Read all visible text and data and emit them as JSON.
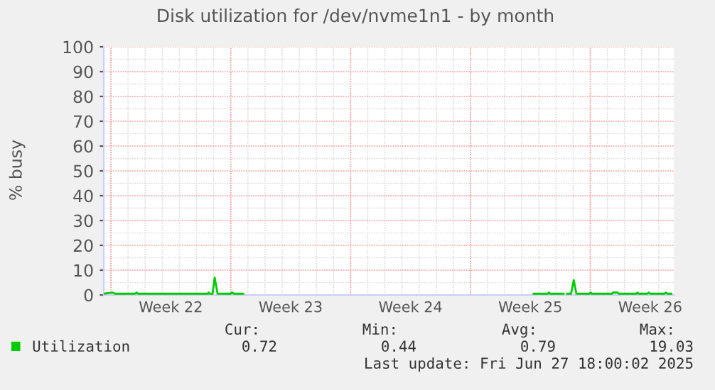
{
  "chart_data": {
    "type": "line",
    "title": "Disk utilization for /dev/nvme1n1 - by month",
    "ylabel": "% busy",
    "xlim": [
      "2025-05-25T14:00",
      "2025-06-27T21:00"
    ],
    "ylim": [
      0,
      100
    ],
    "xticks": [
      {
        "value": "2025-05-26",
        "label": null
      },
      {
        "value": "2025-05-29T12:00",
        "label": "Week 22"
      },
      {
        "value": "2025-06-02",
        "label": null
      },
      {
        "value": "2025-06-05T12:00",
        "label": "Week 23"
      },
      {
        "value": "2025-06-09",
        "label": null
      },
      {
        "value": "2025-06-12T12:00",
        "label": "Week 24"
      },
      {
        "value": "2025-06-16",
        "label": null
      },
      {
        "value": "2025-06-19T12:00",
        "label": "Week 25"
      },
      {
        "value": "2025-06-23",
        "label": null
      },
      {
        "value": "2025-06-26T12:00",
        "label": "Week 26"
      }
    ],
    "yticks": [
      0,
      10,
      20,
      30,
      40,
      50,
      60,
      70,
      80,
      90,
      100
    ],
    "grid": true,
    "legend": "bottom left",
    "series": [
      {
        "name": "Utilization",
        "color": "#00cc00",
        "x": [
          "2025-05-25T14:00",
          "2025-05-26T02:00",
          "2025-05-26T06:00",
          "2025-05-27T10:00",
          "2025-05-27T12:00",
          "2025-05-27T14:00",
          "2025-05-31T16:00",
          "2025-05-31T17:00",
          "2025-05-31T18:30",
          "2025-05-31T22:30",
          "2025-06-01T01:30",
          "2025-06-01T05:30",
          "2025-06-01T23:30",
          "2025-06-02T02:00",
          "2025-06-02T04:30",
          "2025-06-02T17:30",
          "2025-06-02T19:00",
          "2025-06-19T16:30",
          "2025-06-20T12:30",
          "2025-06-20T14:00",
          "2025-06-20T15:30",
          "2025-06-21T10:30",
          "2025-06-21T13:00",
          "2025-06-21T15:30",
          "2025-06-21T21:00",
          "2025-06-22T00:45",
          "2025-06-22T04:30",
          "2025-06-22T23:00",
          "2025-06-23T00:30",
          "2025-06-23T02:00",
          "2025-06-24T06:30",
          "2025-06-24T08:00",
          "2025-06-24T14:00",
          "2025-06-24T16:00",
          "2025-06-25T17:00",
          "2025-06-25T18:00",
          "2025-06-25T20:00",
          "2025-06-26T08:00",
          "2025-06-26T10:00",
          "2025-06-26T12:00",
          "2025-06-27T08:00",
          "2025-06-27T10:00",
          "2025-06-27T12:00",
          "2025-06-27T17:30"
        ],
        "values": [
          0.5,
          1,
          0.5,
          0.5,
          1,
          0.5,
          0.5,
          1,
          0.5,
          0.5,
          7,
          0.5,
          0.5,
          1,
          0.5,
          0.5,
          null,
          0.5,
          0.5,
          1,
          0.5,
          0.5,
          null,
          0.5,
          0.5,
          6,
          0.5,
          0.5,
          1,
          0.5,
          0.5,
          1,
          1,
          0.5,
          0.5,
          1,
          0.5,
          0.5,
          1,
          0.5,
          0.5,
          1,
          0.5,
          0.5
        ]
      }
    ],
    "annotations": [
      "Cur:",
      "Min:",
      "Avg:",
      "Max:",
      "0.72",
      "0.44",
      "0.79",
      "19.03",
      "Last update: Fri Jun 27 18:00:02 2025"
    ]
  }
}
